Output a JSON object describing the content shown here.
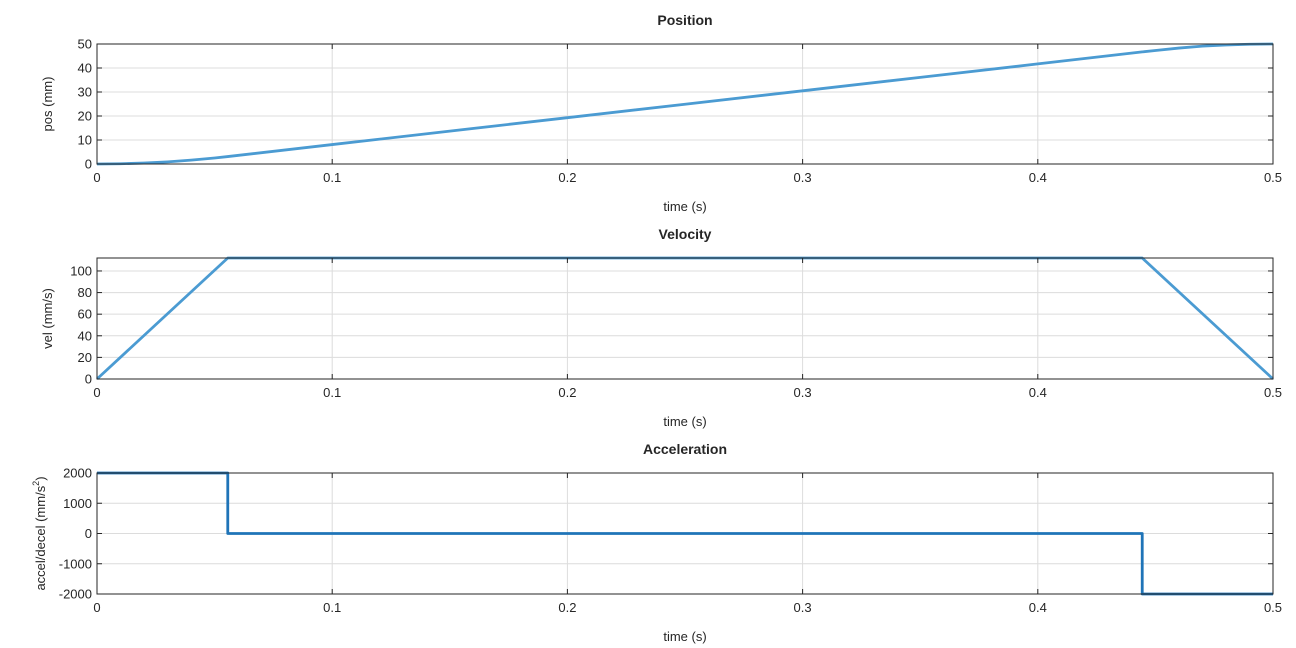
{
  "chart_data": [
    {
      "type": "line",
      "title": "Position",
      "xlabel": "time (s)",
      "ylabel": "pos (mm)",
      "xlim": [
        0,
        0.5
      ],
      "ylim": [
        0,
        50
      ],
      "xticks": [
        0,
        0.1,
        0.2,
        0.3,
        0.4,
        0.5
      ],
      "xtick_labels": [
        "0",
        "0.1",
        "0.2",
        "0.3",
        "0.4",
        "0.5"
      ],
      "yticks": [
        0,
        10,
        20,
        30,
        40,
        50
      ],
      "ytick_labels": [
        "0",
        "10",
        "20",
        "30",
        "40",
        "50"
      ],
      "grid": true,
      "color": "#4b9bd2",
      "x": [
        0,
        0.01,
        0.02,
        0.03,
        0.04,
        0.05,
        0.0556,
        0.1,
        0.15,
        0.2,
        0.25,
        0.3,
        0.35,
        0.4,
        0.4444,
        0.45,
        0.46,
        0.47,
        0.48,
        0.49,
        0.5
      ],
      "y": [
        0,
        0.1,
        0.4,
        0.9,
        1.6,
        2.5,
        3.1,
        8.1,
        13.7,
        19.3,
        24.9,
        30.5,
        36.1,
        41.7,
        46.7,
        47.3,
        48.3,
        49.1,
        49.6,
        49.9,
        50
      ]
    },
    {
      "type": "line",
      "title": "Velocity",
      "xlabel": "time (s)",
      "ylabel": "vel (mm/s)",
      "xlim": [
        0,
        0.5
      ],
      "ylim": [
        0,
        112
      ],
      "xticks": [
        0,
        0.1,
        0.2,
        0.3,
        0.4,
        0.5
      ],
      "xtick_labels": [
        "0",
        "0.1",
        "0.2",
        "0.3",
        "0.4",
        "0.5"
      ],
      "yticks": [
        0,
        20,
        40,
        60,
        80,
        100
      ],
      "ytick_labels": [
        "0",
        "20",
        "40",
        "60",
        "80",
        "100"
      ],
      "grid": true,
      "color": "#4b9bd2",
      "x": [
        0,
        0.0556,
        0.4444,
        0.5
      ],
      "y": [
        0,
        112,
        112,
        0
      ]
    },
    {
      "type": "line",
      "title": "Acceleration",
      "xlabel": "time (s)",
      "ylabel": "accel/decel (mm/s",
      "ylabel_sup": "2",
      "ylabel_end": ")",
      "xlim": [
        0,
        0.5
      ],
      "ylim": [
        -2000,
        2000
      ],
      "xticks": [
        0,
        0.1,
        0.2,
        0.3,
        0.4,
        0.5
      ],
      "xtick_labels": [
        "0",
        "0.1",
        "0.2",
        "0.3",
        "0.4",
        "0.5"
      ],
      "yticks": [
        -2000,
        -1000,
        0,
        1000,
        2000
      ],
      "ytick_labels": [
        "-2000",
        "-1000",
        "0",
        "1000",
        "2000"
      ],
      "grid": true,
      "color": "#1f74b8",
      "x": [
        0,
        0.0556,
        0.0556,
        0.4444,
        0.4444,
        0.5
      ],
      "y": [
        2000,
        2000,
        0,
        0,
        -2000,
        -2000
      ]
    }
  ]
}
